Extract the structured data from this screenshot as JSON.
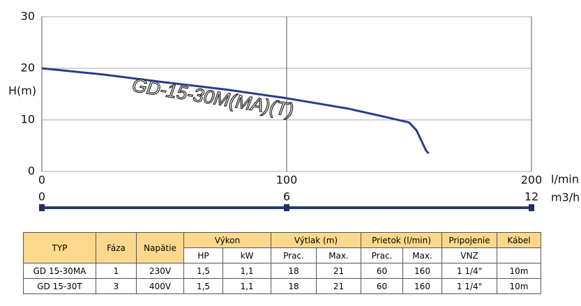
{
  "chart_data": {
    "type": "line",
    "ylabel": "H(m)",
    "xlabel": "l/min",
    "x": [
      0,
      25,
      50,
      75,
      100,
      125,
      140,
      150,
      153,
      155,
      157,
      158
    ],
    "series": [
      {
        "name": "GD-15-30M(MA)(T)",
        "color": "#2b3a8c",
        "values": [
          20,
          18.8,
          17.3,
          15.9,
          14.2,
          12.2,
          10.6,
          9.5,
          8,
          6,
          4,
          3.5
        ]
      }
    ],
    "xlim": [
      0,
      200
    ],
    "xticks": [
      0,
      100,
      200
    ],
    "ylim": [
      0,
      30
    ],
    "yticks": [
      0,
      10,
      20,
      30
    ],
    "grid": true,
    "x2label": "m3/h",
    "x2lim": [
      0,
      12
    ],
    "x2ticks": [
      0,
      6,
      12
    ]
  },
  "table": {
    "group_headers": [
      "TYP",
      "Fáza",
      "Napätie",
      "Výkon",
      "Výtlak (m)",
      "Prietok (l/min)",
      "Pripojenie",
      "Kábel"
    ],
    "sub_headers": [
      "HP",
      "kW",
      "Prac.",
      "Max.",
      "Prac.",
      "Max.",
      "VNZ"
    ],
    "rows": [
      [
        "GD 15-30MA",
        "1",
        "230V",
        "1,5",
        "1,1",
        "18",
        "21",
        "60",
        "160",
        "1 1/4\"",
        "10m"
      ],
      [
        "GD 15-30T",
        "3",
        "400V",
        "1,5",
        "1,1",
        "18",
        "21",
        "60",
        "160",
        "1 1/4\"",
        "10m"
      ]
    ]
  }
}
